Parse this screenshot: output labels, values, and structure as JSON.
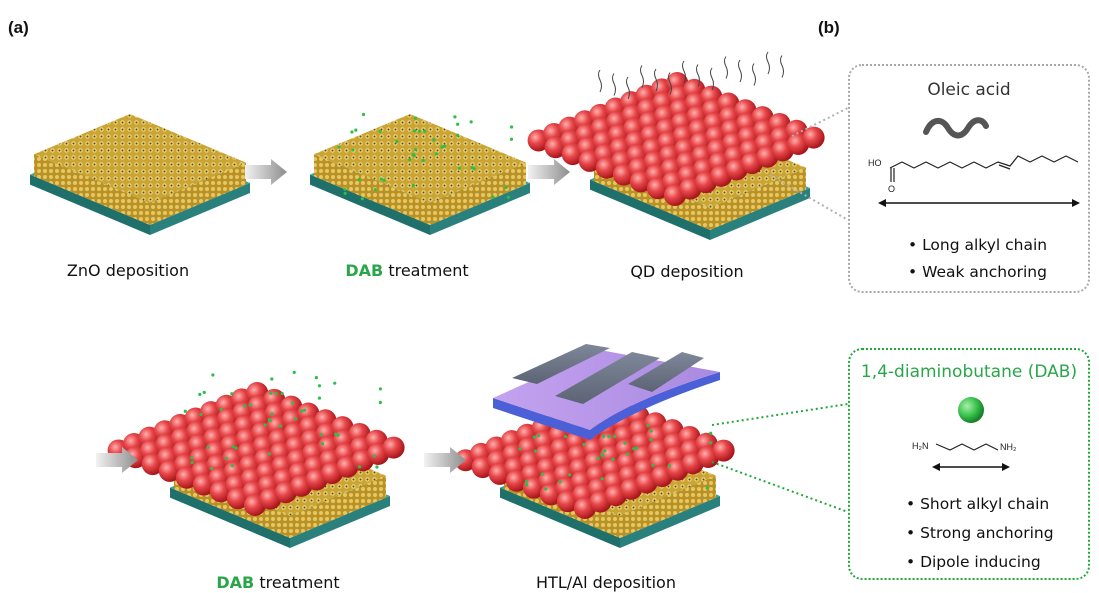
{
  "panels": {
    "a": "(a)",
    "b": "(b)"
  },
  "steps": [
    {
      "pre": "",
      "hl": "",
      "post": "ZnO deposition"
    },
    {
      "pre": "",
      "hl": "DAB",
      "post": " treatment"
    },
    {
      "pre": "",
      "hl": "",
      "post": "QD deposition"
    },
    {
      "pre": "",
      "hl": "DAB",
      "post": " treatment"
    },
    {
      "pre": "",
      "hl": "",
      "post": "HTL/Al deposition"
    }
  ],
  "oleic": {
    "title": "Oleic acid",
    "atoms": {
      "hydroxyl": "HO",
      "carbonyl": "O"
    },
    "bullets": [
      "• Long alkyl chain",
      "• Weak anchoring"
    ]
  },
  "dab": {
    "title": "1,4-diaminobutane (DAB)",
    "atoms": {
      "left": "H₂N",
      "right": "NH₂"
    },
    "bullets": [
      "• Short alkyl chain",
      "• Strong anchoring",
      "• Dipole inducing"
    ]
  },
  "colors": {
    "accent_green": "#2aa64a",
    "qd_red": "#e8474a",
    "zno_gold": "#d6b23a",
    "substrate_teal": "#2f8f8a",
    "htl_purple": "#b38ee0",
    "electrode_grey": "#6f7787"
  }
}
